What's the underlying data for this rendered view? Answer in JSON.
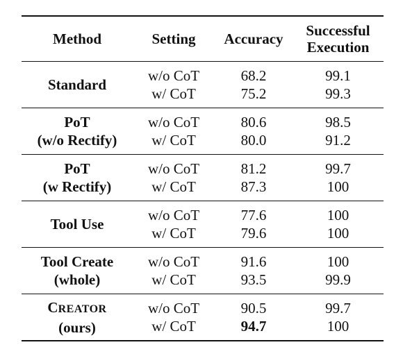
{
  "table": {
    "headers": {
      "method": "Method",
      "setting": "Setting",
      "accuracy": "Accuracy",
      "success_line1": "Successful",
      "success_line2": "Execution"
    },
    "rows": [
      {
        "method_line1": "Standard",
        "method_line2": "",
        "settings": [
          "w/o CoT",
          "w/ CoT"
        ],
        "accuracy": [
          "68.2",
          "75.2"
        ],
        "success": [
          "99.1",
          "99.3"
        ]
      },
      {
        "method_line1": "PoT",
        "method_line2": "(w/o Rectify)",
        "settings": [
          "w/o CoT",
          "w/ CoT"
        ],
        "accuracy": [
          "80.6",
          "80.0"
        ],
        "success": [
          "98.5",
          "91.2"
        ]
      },
      {
        "method_line1": "PoT",
        "method_line2": "(w Rectify)",
        "settings": [
          "w/o CoT",
          "w/ CoT"
        ],
        "accuracy": [
          "81.2",
          "87.3"
        ],
        "success": [
          "99.7",
          "100"
        ]
      },
      {
        "method_line1": "Tool Use",
        "method_line2": "",
        "settings": [
          "w/o CoT",
          "w/ CoT"
        ],
        "accuracy": [
          "77.6",
          "79.6"
        ],
        "success": [
          "100",
          "100"
        ]
      },
      {
        "method_line1": "Tool Create",
        "method_line2": "(whole)",
        "settings": [
          "w/o CoT",
          "w/ CoT"
        ],
        "accuracy": [
          "91.6",
          "93.5"
        ],
        "success": [
          "100",
          "99.9"
        ]
      },
      {
        "method_sc_first": "C",
        "method_sc_rest": "REATOR",
        "method_line2": "(ours)",
        "settings": [
          "w/o CoT",
          "w/ CoT"
        ],
        "accuracy": [
          "90.5",
          "94.7"
        ],
        "success": [
          "99.7",
          "100"
        ]
      }
    ]
  }
}
